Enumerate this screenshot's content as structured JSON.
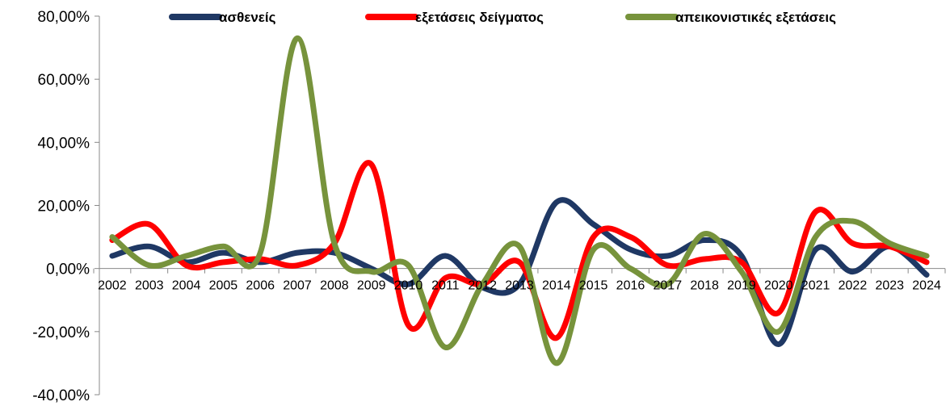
{
  "chart_data": {
    "type": "line",
    "smooth": true,
    "categories": [
      "2002",
      "2003",
      "2004",
      "2005",
      "2006",
      "2007",
      "2008",
      "2009",
      "2010",
      "2011",
      "2012",
      "2013",
      "2014",
      "2015",
      "2016",
      "2017",
      "2018",
      "2019",
      "2020",
      "2021",
      "2022",
      "2023",
      "2024"
    ],
    "y_tick_labels": [
      "80,00%",
      "60,00%",
      "40,00%",
      "20,00%",
      "0,00%",
      "-20,00%",
      "-40,00%"
    ],
    "y_ticks": [
      80,
      60,
      40,
      20,
      0,
      -20,
      -40
    ],
    "ylim": [
      -40,
      80
    ],
    "grid": false,
    "legend_position": "top",
    "series": [
      {
        "name": "ασθενείς",
        "color": "#1f3864",
        "values": [
          4,
          7,
          2,
          5,
          2,
          5,
          5,
          0,
          -5,
          4,
          -6,
          -5,
          21,
          14,
          6,
          4,
          9,
          4,
          -24,
          6,
          -1,
          7,
          -2
        ]
      },
      {
        "name": "εξετάσεις δείγματος",
        "color": "#ff0000",
        "values": [
          9,
          14,
          1,
          2,
          3,
          1,
          8,
          33,
          -18,
          -3,
          -5,
          2,
          -22,
          10,
          10,
          1,
          3,
          2,
          -14,
          18,
          8,
          7,
          2
        ]
      },
      {
        "name": "απεικονιστικές εξετάσεις",
        "color": "#77933c",
        "values": [
          10,
          1,
          4,
          7,
          5,
          73,
          8,
          -1,
          1,
          -25,
          -5,
          7,
          -30,
          6,
          0,
          -5,
          11,
          -1,
          -20,
          10,
          15,
          8,
          4
        ]
      }
    ]
  }
}
